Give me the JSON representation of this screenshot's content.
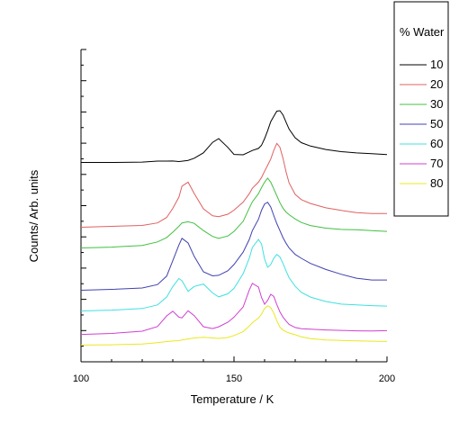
{
  "chart_data": {
    "type": "line",
    "title": "",
    "xlabel": "Temperature / K",
    "ylabel": "Counts/ Arb. units",
    "xlim": [
      100,
      200
    ],
    "x_ticks": [
      100,
      150,
      200
    ],
    "y_ticks_labeled": false,
    "grid": false,
    "legend": {
      "title": "% Water",
      "position": "right"
    },
    "x": [
      90,
      100,
      110,
      120,
      125,
      128,
      130,
      132,
      133,
      135,
      137,
      140,
      143,
      145,
      148,
      150,
      153,
      155,
      156,
      158,
      159,
      160,
      161,
      162,
      163,
      164,
      165,
      166,
      167,
      168,
      170,
      172,
      175,
      180,
      185,
      190,
      195,
      200
    ],
    "series": [
      {
        "name": "10",
        "color": "#000000",
        "values": [
          0.0,
          0.0,
          0.0,
          0.0,
          0.01,
          0.01,
          0.02,
          0.02,
          0.03,
          0.04,
          0.08,
          0.2,
          0.45,
          0.55,
          0.35,
          0.18,
          0.16,
          0.22,
          0.26,
          0.32,
          0.4,
          0.55,
          0.72,
          0.92,
          1.05,
          1.18,
          1.2,
          1.1,
          0.92,
          0.75,
          0.55,
          0.45,
          0.38,
          0.3,
          0.24,
          0.2,
          0.18,
          0.17
        ]
      },
      {
        "name": "20",
        "color": "#e06060",
        "values": [
          0.0,
          0.0,
          0.02,
          0.05,
          0.12,
          0.25,
          0.45,
          0.7,
          0.95,
          1.05,
          0.8,
          0.45,
          0.28,
          0.25,
          0.3,
          0.4,
          0.6,
          0.8,
          0.92,
          1.05,
          1.15,
          1.3,
          1.45,
          1.6,
          1.8,
          1.95,
          1.85,
          1.6,
          1.3,
          1.05,
          0.78,
          0.65,
          0.55,
          0.45,
          0.4,
          0.36,
          0.34,
          0.33
        ]
      },
      {
        "name": "30",
        "color": "#40c040",
        "values": [
          0.0,
          0.0,
          0.02,
          0.05,
          0.12,
          0.22,
          0.35,
          0.5,
          0.58,
          0.6,
          0.55,
          0.38,
          0.25,
          0.22,
          0.28,
          0.38,
          0.6,
          0.9,
          1.05,
          1.25,
          1.4,
          1.52,
          1.6,
          1.5,
          1.35,
          1.2,
          1.05,
          0.92,
          0.82,
          0.75,
          0.65,
          0.58,
          0.52,
          0.46,
          0.42,
          0.4,
          0.38,
          0.37
        ]
      },
      {
        "name": "50",
        "color": "#4040b0",
        "values": [
          0.0,
          0.0,
          0.02,
          0.06,
          0.15,
          0.35,
          0.7,
          1.05,
          1.2,
          1.1,
          0.8,
          0.45,
          0.35,
          0.35,
          0.45,
          0.6,
          0.9,
          1.2,
          1.4,
          1.65,
          1.85,
          2.0,
          2.05,
          1.95,
          1.75,
          1.55,
          1.38,
          1.22,
          1.1,
          1.0,
          0.85,
          0.75,
          0.62,
          0.48,
          0.38,
          0.3,
          0.26,
          0.25
        ]
      },
      {
        "name": "60",
        "color": "#40e0e0",
        "values": [
          0.0,
          0.0,
          0.02,
          0.05,
          0.12,
          0.3,
          0.55,
          0.75,
          0.7,
          0.45,
          0.55,
          0.6,
          0.4,
          0.32,
          0.4,
          0.52,
          0.85,
          1.2,
          1.45,
          1.65,
          1.55,
          1.2,
          1.0,
          1.05,
          1.2,
          1.3,
          1.25,
          1.1,
          0.92,
          0.75,
          0.55,
          0.42,
          0.32,
          0.22,
          0.15,
          0.12,
          0.1,
          0.1
        ]
      },
      {
        "name": "70",
        "color": "#d040d0",
        "values": [
          0.0,
          0.0,
          0.02,
          0.08,
          0.2,
          0.45,
          0.55,
          0.4,
          0.38,
          0.55,
          0.45,
          0.2,
          0.15,
          0.18,
          0.28,
          0.4,
          0.65,
          1.05,
          1.2,
          1.1,
          0.85,
          0.7,
          0.8,
          0.95,
          0.9,
          0.7,
          0.52,
          0.4,
          0.32,
          0.25,
          0.18,
          0.14,
          0.12,
          0.1,
          0.1,
          0.1,
          0.1,
          0.1
        ]
      },
      {
        "name": "80",
        "color": "#e8e820",
        "values": [
          0.0,
          0.0,
          0.01,
          0.02,
          0.04,
          0.06,
          0.08,
          0.1,
          0.12,
          0.14,
          0.15,
          0.16,
          0.15,
          0.15,
          0.18,
          0.22,
          0.3,
          0.42,
          0.5,
          0.62,
          0.72,
          0.85,
          0.9,
          0.85,
          0.72,
          0.55,
          0.42,
          0.35,
          0.3,
          0.26,
          0.22,
          0.18,
          0.15,
          0.12,
          0.1,
          0.08,
          0.07,
          0.07
        ]
      }
    ]
  }
}
